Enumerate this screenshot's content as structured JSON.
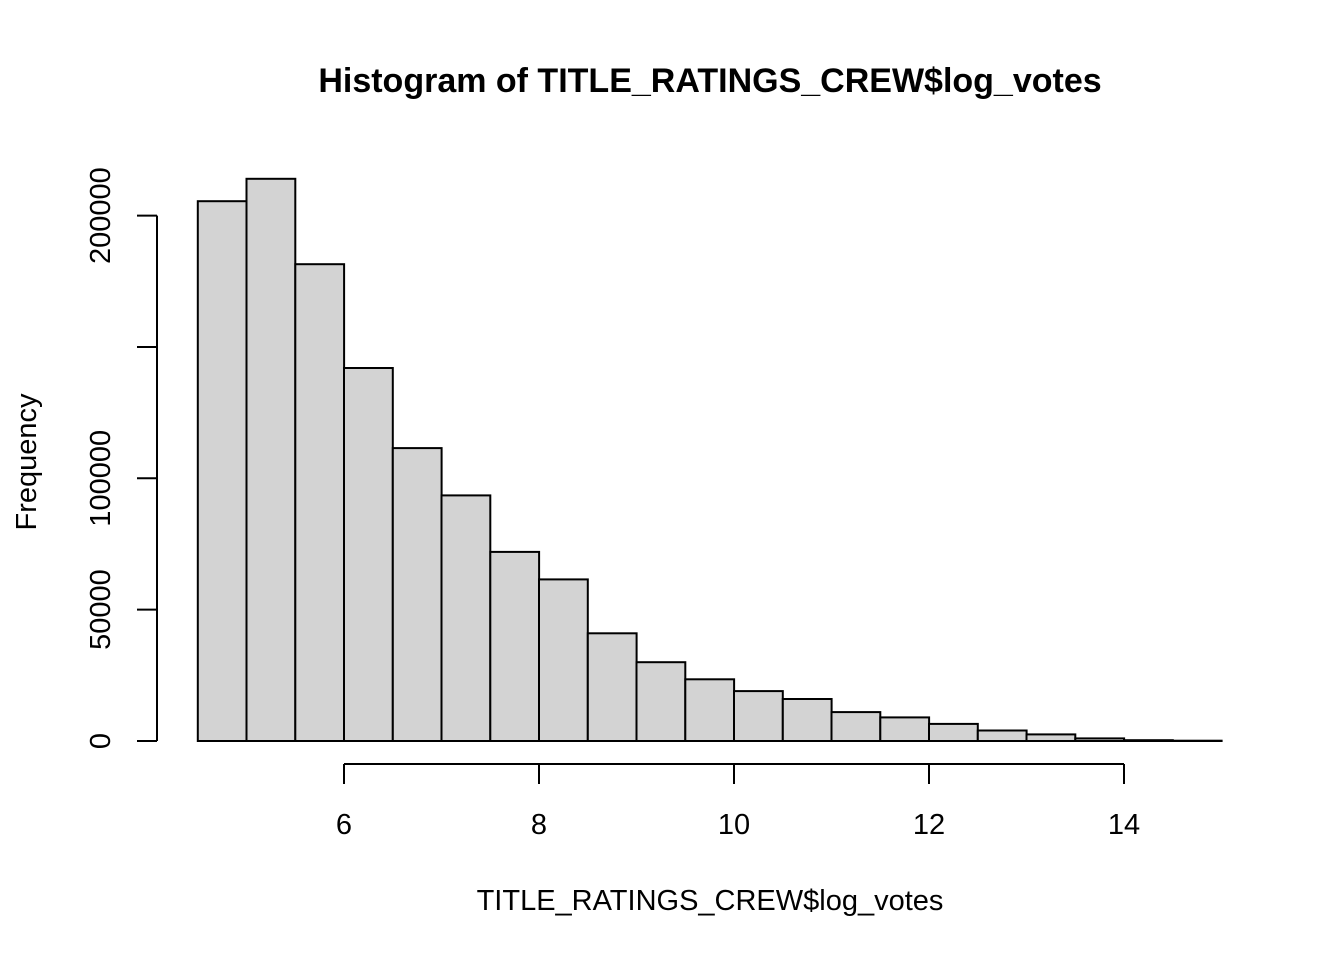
{
  "chart_data": {
    "type": "bar",
    "title": "Histogram of TITLE_RATINGS_CREW$log_votes",
    "xlabel": "TITLE_RATINGS_CREW$log_votes",
    "ylabel": "Frequency",
    "bin_width": 0.5,
    "bin_starts": [
      4.5,
      5.0,
      5.5,
      6.0,
      6.5,
      7.0,
      7.5,
      8.0,
      8.5,
      9.0,
      9.5,
      10.0,
      10.5,
      11.0,
      11.5,
      12.0,
      12.5,
      13.0,
      13.5,
      14.0,
      14.5
    ],
    "values": [
      205500,
      214000,
      181500,
      142000,
      111500,
      93500,
      72000,
      61500,
      41000,
      30000,
      23500,
      19000,
      16000,
      11000,
      9000,
      6500,
      4000,
      2500,
      1000,
      300,
      100
    ],
    "xlim": [
      4.5,
      15.0
    ],
    "ylim": [
      0,
      214000
    ],
    "x_ticks": [
      6,
      8,
      10,
      12,
      14
    ],
    "x_tick_labels": [
      "6",
      "8",
      "10",
      "12",
      "14"
    ],
    "y_ticks": [
      0,
      50000,
      100000,
      150000,
      200000
    ],
    "y_tick_labels": [
      "0",
      "50000",
      "100000",
      "",
      "200000"
    ],
    "grid": false,
    "colors": {
      "bar_fill": "#d3d3d3",
      "bar_stroke": "#000000"
    }
  }
}
